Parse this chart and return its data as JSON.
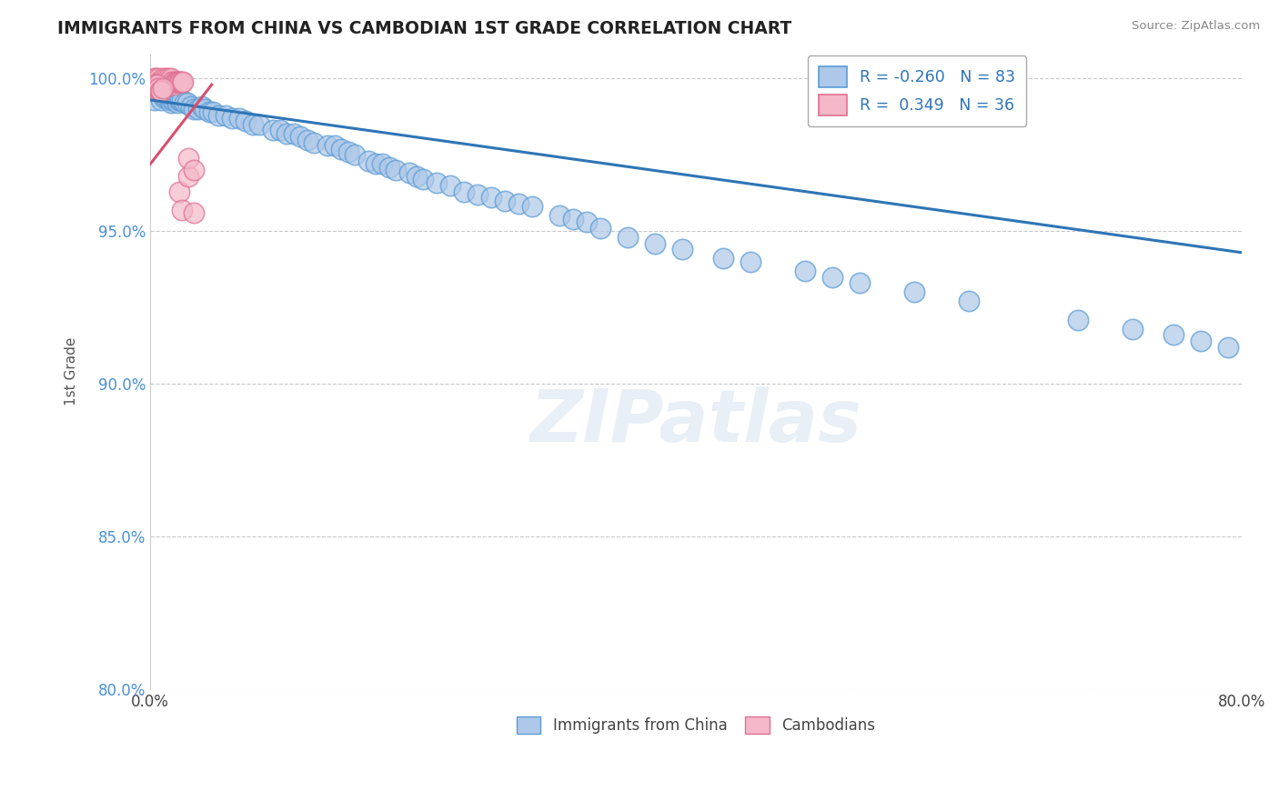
{
  "title": "IMMIGRANTS FROM CHINA VS CAMBODIAN 1ST GRADE CORRELATION CHART",
  "source": "Source: ZipAtlas.com",
  "ylabel": "1st Grade",
  "xlim": [
    0.0,
    0.8
  ],
  "ylim": [
    0.875,
    1.008
  ],
  "xticks": [
    0.0,
    0.1,
    0.2,
    0.3,
    0.4,
    0.5,
    0.6,
    0.7,
    0.8
  ],
  "xticklabels": [
    "0.0%",
    "",
    "",
    "",
    "",
    "",
    "",
    "",
    "80.0%"
  ],
  "yticks": [
    0.8,
    0.85,
    0.9,
    0.95,
    1.0
  ],
  "yticklabels": [
    "80.0%",
    "85.0%",
    "90.0%",
    "95.0%",
    "100.0%"
  ],
  "legend_r_blue": "-0.260",
  "legend_n_blue": "83",
  "legend_r_pink": "0.349",
  "legend_n_pink": "36",
  "blue_color": "#adc8e8",
  "blue_edge_color": "#5b9bd5",
  "blue_line_color": "#2e75b6",
  "pink_color": "#f4b8c8",
  "pink_edge_color": "#e07090",
  "pink_line_color": "#d94f6e",
  "watermark": "ZIPatlas",
  "blue_scatter_x": [
    0.003,
    0.005,
    0.006,
    0.007,
    0.008,
    0.009,
    0.01,
    0.011,
    0.012,
    0.013,
    0.014,
    0.015,
    0.016,
    0.017,
    0.018,
    0.019,
    0.02,
    0.021,
    0.022,
    0.023,
    0.025,
    0.027,
    0.03,
    0.032,
    0.035,
    0.038,
    0.04,
    0.043,
    0.046,
    0.05,
    0.055,
    0.06,
    0.065,
    0.07,
    0.075,
    0.08,
    0.09,
    0.095,
    0.1,
    0.105,
    0.11,
    0.115,
    0.12,
    0.13,
    0.135,
    0.14,
    0.145,
    0.15,
    0.16,
    0.165,
    0.17,
    0.175,
    0.18,
    0.19,
    0.195,
    0.2,
    0.21,
    0.22,
    0.23,
    0.24,
    0.25,
    0.26,
    0.27,
    0.28,
    0.3,
    0.31,
    0.32,
    0.33,
    0.35,
    0.37,
    0.39,
    0.42,
    0.44,
    0.48,
    0.5,
    0.52,
    0.56,
    0.6,
    0.68,
    0.72,
    0.75,
    0.77,
    0.79
  ],
  "blue_scatter_y": [
    0.993,
    0.997,
    0.997,
    0.998,
    0.993,
    0.995,
    0.994,
    0.994,
    0.995,
    0.996,
    0.993,
    0.992,
    0.993,
    0.993,
    0.994,
    0.993,
    0.992,
    0.993,
    0.993,
    0.993,
    0.992,
    0.992,
    0.991,
    0.99,
    0.99,
    0.991,
    0.99,
    0.989,
    0.989,
    0.988,
    0.988,
    0.987,
    0.987,
    0.986,
    0.985,
    0.985,
    0.983,
    0.983,
    0.982,
    0.982,
    0.981,
    0.98,
    0.979,
    0.978,
    0.978,
    0.977,
    0.976,
    0.975,
    0.973,
    0.972,
    0.972,
    0.971,
    0.97,
    0.969,
    0.968,
    0.967,
    0.966,
    0.965,
    0.963,
    0.962,
    0.961,
    0.96,
    0.959,
    0.958,
    0.955,
    0.954,
    0.953,
    0.951,
    0.948,
    0.946,
    0.944,
    0.941,
    0.94,
    0.937,
    0.935,
    0.933,
    0.93,
    0.927,
    0.921,
    0.918,
    0.916,
    0.914,
    0.912
  ],
  "pink_scatter_x": [
    0.002,
    0.003,
    0.004,
    0.005,
    0.006,
    0.007,
    0.008,
    0.009,
    0.01,
    0.011,
    0.012,
    0.013,
    0.014,
    0.015,
    0.016,
    0.017,
    0.018,
    0.019,
    0.02,
    0.021,
    0.022,
    0.023,
    0.024,
    0.003,
    0.004,
    0.005,
    0.006,
    0.007,
    0.008,
    0.009,
    0.021,
    0.023,
    0.028,
    0.032,
    0.028,
    0.032
  ],
  "pink_scatter_y": [
    0.999,
    1.0,
    1.0,
    0.999,
    1.0,
    0.999,
    0.999,
    1.0,
    0.999,
    1.0,
    0.999,
    1.0,
    0.999,
    1.0,
    0.999,
    0.998,
    0.999,
    0.999,
    0.999,
    0.999,
    0.999,
    0.999,
    0.999,
    0.998,
    0.997,
    0.998,
    0.997,
    0.996,
    0.996,
    0.997,
    0.963,
    0.957,
    0.968,
    0.956,
    0.974,
    0.97
  ],
  "blue_trendline": [
    0.0,
    0.8,
    0.993,
    0.943
  ],
  "pink_trendline": [
    0.0,
    0.045,
    0.972,
    0.998
  ]
}
